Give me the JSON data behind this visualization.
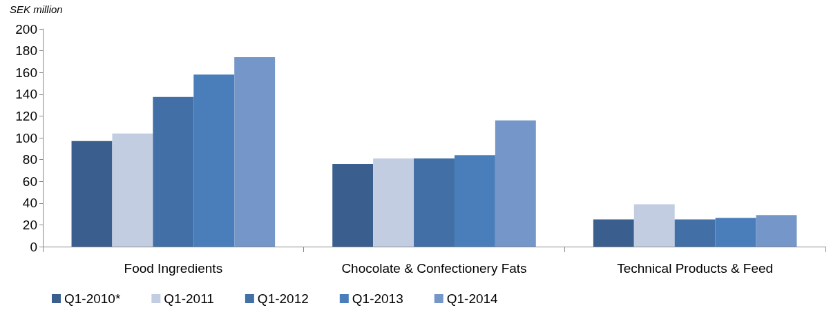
{
  "chart_data": {
    "type": "bar",
    "ylabel": "SEK million",
    "categories": [
      "Food Ingredients",
      "Chocolate & Confectionery Fats",
      "Technical Products & Feed"
    ],
    "series": [
      {
        "name": "Q1-2010*",
        "color": "#3a5f8e",
        "values": [
          97,
          76,
          25
        ]
      },
      {
        "name": "Q1-2011",
        "color": "#c3cde2",
        "values": [
          104,
          81,
          39
        ]
      },
      {
        "name": "Q1-2012",
        "color": "#416fa6",
        "values": [
          137.5,
          81,
          25
        ]
      },
      {
        "name": "Q1-2013",
        "color": "#4a7ebb",
        "values": [
          158,
          84,
          26.5
        ]
      },
      {
        "name": "Q1-2014",
        "color": "#7596c8",
        "values": [
          174,
          116,
          29
        ]
      }
    ],
    "ylim": [
      0,
      200
    ],
    "yticks": [
      0,
      20,
      40,
      60,
      80,
      100,
      120,
      140,
      160,
      180,
      200
    ],
    "grid": false,
    "legend": "bottom left"
  }
}
